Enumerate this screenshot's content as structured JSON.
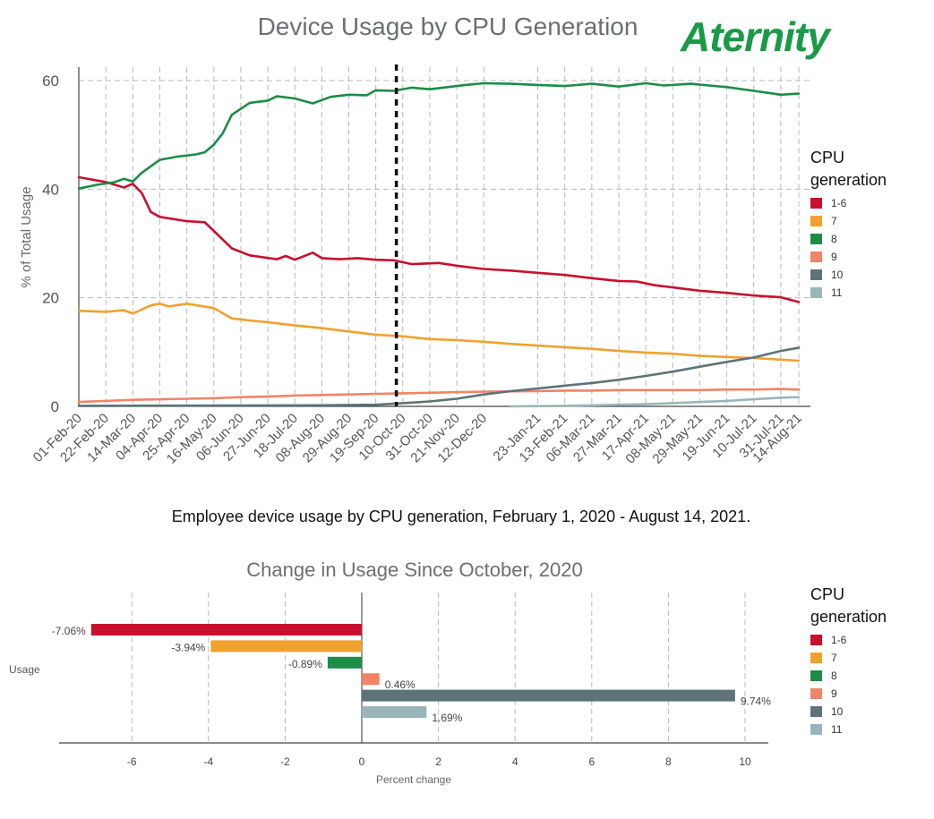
{
  "brand": {
    "logo_text": "Aternity",
    "logo_color": "#1a9a47"
  },
  "caption": "Employee device usage by CPU generation, February 1, 2020 - August 14, 2021.",
  "legend": {
    "title_line1": "CPU",
    "title_line2": "generation",
    "items": [
      {
        "label": "1-6",
        "color": "#c8102e"
      },
      {
        "label": "7",
        "color": "#f0a22e"
      },
      {
        "label": "8",
        "color": "#1c8c47"
      },
      {
        "label": "9",
        "color": "#f08468"
      },
      {
        "label": "10",
        "color": "#5d7378"
      },
      {
        "label": "11",
        "color": "#9ab5ba"
      }
    ]
  },
  "chart_data": [
    {
      "type": "line",
      "title": "Device Usage by CPU Generation",
      "ylabel": "% of Total Usage",
      "xlabel": "",
      "ylim": [
        0,
        62
      ],
      "yticks": [
        0,
        20,
        40,
        60
      ],
      "grid": true,
      "legend_placement": "right",
      "x_ticks": [
        "01-Feb-20",
        "22-Feb-20",
        "14-Mar-20",
        "04-Apr-20",
        "25-Apr-20",
        "16-May-20",
        "06-Jun-20",
        "27-Jun-20",
        "18-Jul-20",
        "08-Aug-20",
        "29-Aug-20",
        "19-Sep-20",
        "10-Oct-20",
        "31-Oct-20",
        "21-Nov-20",
        "12-Dec-20",
        "23-Jan-21",
        "13-Feb-21",
        "06-Mar-21",
        "27-Mar-21",
        "17-Apr-21",
        "08-May-21",
        "29-May-21",
        "19-Jun-21",
        "10-Jul-21",
        "31-Jul-21",
        "14-Aug-21"
      ],
      "reference_line": {
        "x": "05-Oct-20",
        "style": "dotted"
      },
      "series": [
        {
          "name": "1-6",
          "color": "#c8102e",
          "points": [
            [
              "01-Feb-20",
              42.2
            ],
            [
              "22-Feb-20",
              41.3
            ],
            [
              "07-Mar-20",
              40.3
            ],
            [
              "14-Mar-20",
              41.0
            ],
            [
              "21-Mar-20",
              39.3
            ],
            [
              "28-Mar-20",
              35.8
            ],
            [
              "04-Apr-20",
              34.9
            ],
            [
              "25-Apr-20",
              34.1
            ],
            [
              "09-May-20",
              33.9
            ],
            [
              "16-May-20",
              32.3
            ],
            [
              "30-May-20",
              29.1
            ],
            [
              "13-Jun-20",
              27.8
            ],
            [
              "04-Jul-20",
              27.1
            ],
            [
              "11-Jul-20",
              27.7
            ],
            [
              "18-Jul-20",
              27.0
            ],
            [
              "01-Aug-20",
              28.3
            ],
            [
              "08-Aug-20",
              27.3
            ],
            [
              "22-Aug-20",
              27.1
            ],
            [
              "05-Sep-20",
              27.3
            ],
            [
              "19-Sep-20",
              27.0
            ],
            [
              "03-Oct-20",
              26.9
            ],
            [
              "17-Oct-20",
              26.2
            ],
            [
              "07-Nov-20",
              26.4
            ],
            [
              "21-Nov-20",
              25.9
            ],
            [
              "12-Dec-20",
              25.3
            ],
            [
              "02-Jan-21",
              25.0
            ],
            [
              "23-Jan-21",
              24.6
            ],
            [
              "13-Feb-21",
              24.2
            ],
            [
              "06-Mar-21",
              23.6
            ],
            [
              "27-Mar-21",
              23.1
            ],
            [
              "10-Apr-21",
              23.0
            ],
            [
              "24-Apr-21",
              22.3
            ],
            [
              "08-May-21",
              21.9
            ],
            [
              "29-May-21",
              21.3
            ],
            [
              "19-Jun-21",
              20.9
            ],
            [
              "10-Jul-21",
              20.4
            ],
            [
              "31-Jul-21",
              20.1
            ],
            [
              "14-Aug-21",
              19.2
            ]
          ]
        },
        {
          "name": "7",
          "color": "#f0a22e",
          "points": [
            [
              "01-Feb-20",
              17.6
            ],
            [
              "22-Feb-20",
              17.4
            ],
            [
              "07-Mar-20",
              17.7
            ],
            [
              "14-Mar-20",
              17.1
            ],
            [
              "28-Mar-20",
              18.6
            ],
            [
              "04-Apr-20",
              18.9
            ],
            [
              "11-Apr-20",
              18.4
            ],
            [
              "25-Apr-20",
              18.9
            ],
            [
              "16-May-20",
              18.1
            ],
            [
              "30-May-20",
              16.2
            ],
            [
              "13-Jun-20",
              15.8
            ],
            [
              "27-Jun-20",
              15.5
            ],
            [
              "18-Jul-20",
              14.9
            ],
            [
              "08-Aug-20",
              14.4
            ],
            [
              "29-Aug-20",
              13.8
            ],
            [
              "19-Sep-20",
              13.2
            ],
            [
              "10-Oct-20",
              12.9
            ],
            [
              "31-Oct-20",
              12.4
            ],
            [
              "21-Nov-20",
              12.2
            ],
            [
              "12-Dec-20",
              11.9
            ],
            [
              "02-Jan-21",
              11.5
            ],
            [
              "23-Jan-21",
              11.2
            ],
            [
              "13-Feb-21",
              10.9
            ],
            [
              "06-Mar-21",
              10.6
            ],
            [
              "27-Mar-21",
              10.2
            ],
            [
              "17-Apr-21",
              9.9
            ],
            [
              "08-May-21",
              9.7
            ],
            [
              "29-May-21",
              9.3
            ],
            [
              "19-Jun-21",
              9.1
            ],
            [
              "10-Jul-21",
              8.9
            ],
            [
              "31-Jul-21",
              8.6
            ],
            [
              "14-Aug-21",
              8.4
            ]
          ]
        },
        {
          "name": "8",
          "color": "#1c8c47",
          "points": [
            [
              "01-Feb-20",
              40.1
            ],
            [
              "15-Feb-20",
              40.8
            ],
            [
              "29-Feb-20",
              41.3
            ],
            [
              "07-Mar-20",
              41.9
            ],
            [
              "14-Mar-20",
              41.4
            ],
            [
              "21-Mar-20",
              43.0
            ],
            [
              "04-Apr-20",
              45.4
            ],
            [
              "18-Apr-20",
              46.0
            ],
            [
              "02-May-20",
              46.4
            ],
            [
              "09-May-20",
              46.8
            ],
            [
              "16-May-20",
              48.2
            ],
            [
              "23-May-20",
              50.3
            ],
            [
              "30-May-20",
              53.7
            ],
            [
              "13-Jun-20",
              55.9
            ],
            [
              "27-Jun-20",
              56.3
            ],
            [
              "04-Jul-20",
              57.1
            ],
            [
              "18-Jul-20",
              56.7
            ],
            [
              "01-Aug-20",
              55.8
            ],
            [
              "15-Aug-20",
              57.0
            ],
            [
              "29-Aug-20",
              57.4
            ],
            [
              "12-Sep-20",
              57.3
            ],
            [
              "19-Sep-20",
              58.2
            ],
            [
              "03-Oct-20",
              58.1
            ],
            [
              "17-Oct-20",
              58.7
            ],
            [
              "31-Oct-20",
              58.4
            ],
            [
              "14-Nov-20",
              58.8
            ],
            [
              "28-Nov-20",
              59.2
            ],
            [
              "12-Dec-20",
              59.5
            ],
            [
              "02-Jan-21",
              59.4
            ],
            [
              "23-Jan-21",
              59.2
            ],
            [
              "13-Feb-21",
              59.0
            ],
            [
              "06-Mar-21",
              59.4
            ],
            [
              "27-Mar-21",
              58.9
            ],
            [
              "17-Apr-21",
              59.5
            ],
            [
              "01-May-21",
              59.1
            ],
            [
              "22-May-21",
              59.4
            ],
            [
              "05-Jun-21",
              59.1
            ],
            [
              "19-Jun-21",
              58.8
            ],
            [
              "10-Jul-21",
              58.1
            ],
            [
              "31-Jul-21",
              57.4
            ],
            [
              "14-Aug-21",
              57.6
            ]
          ]
        },
        {
          "name": "9",
          "color": "#f08468",
          "points": [
            [
              "01-Feb-20",
              0.8
            ],
            [
              "14-Mar-20",
              1.2
            ],
            [
              "25-Apr-20",
              1.4
            ],
            [
              "16-May-20",
              1.5
            ],
            [
              "06-Jun-20",
              1.7
            ],
            [
              "27-Jun-20",
              1.8
            ],
            [
              "18-Jul-20",
              2.0
            ],
            [
              "08-Aug-20",
              2.1
            ],
            [
              "29-Aug-20",
              2.2
            ],
            [
              "19-Sep-20",
              2.3
            ],
            [
              "10-Oct-20",
              2.4
            ],
            [
              "31-Oct-20",
              2.5
            ],
            [
              "21-Nov-20",
              2.6
            ],
            [
              "12-Dec-20",
              2.7
            ],
            [
              "23-Jan-21",
              2.8
            ],
            [
              "13-Feb-21",
              2.9
            ],
            [
              "06-Mar-21",
              2.9
            ],
            [
              "27-Mar-21",
              3.0
            ],
            [
              "17-Apr-21",
              3.0
            ],
            [
              "08-May-21",
              3.0
            ],
            [
              "29-May-21",
              3.0
            ],
            [
              "19-Jun-21",
              3.1
            ],
            [
              "10-Jul-21",
              3.1
            ],
            [
              "31-Jul-21",
              3.2
            ],
            [
              "14-Aug-21",
              3.1
            ]
          ]
        },
        {
          "name": "10",
          "color": "#5d7378",
          "points": [
            [
              "01-Feb-20",
              0.1
            ],
            [
              "08-Aug-20",
              0.2
            ],
            [
              "19-Sep-20",
              0.3
            ],
            [
              "10-Oct-20",
              0.6
            ],
            [
              "31-Oct-20",
              0.9
            ],
            [
              "21-Nov-20",
              1.4
            ],
            [
              "12-Dec-20",
              2.2
            ],
            [
              "02-Jan-21",
              2.8
            ],
            [
              "23-Jan-21",
              3.3
            ],
            [
              "13-Feb-21",
              3.8
            ],
            [
              "06-Mar-21",
              4.3
            ],
            [
              "27-Mar-21",
              4.9
            ],
            [
              "17-Apr-21",
              5.6
            ],
            [
              "08-May-21",
              6.4
            ],
            [
              "29-May-21",
              7.3
            ],
            [
              "19-Jun-21",
              8.2
            ],
            [
              "10-Jul-21",
              9.0
            ],
            [
              "24-Jul-21",
              9.8
            ],
            [
              "31-Jul-21",
              10.2
            ],
            [
              "14-Aug-21",
              10.8
            ]
          ]
        },
        {
          "name": "11",
          "color": "#9ab5ba",
          "points": [
            [
              "02-Jan-21",
              0.0
            ],
            [
              "13-Feb-21",
              0.1
            ],
            [
              "06-Mar-21",
              0.2
            ],
            [
              "27-Mar-21",
              0.3
            ],
            [
              "17-Apr-21",
              0.4
            ],
            [
              "08-May-21",
              0.6
            ],
            [
              "29-May-21",
              0.8
            ],
            [
              "19-Jun-21",
              1.0
            ],
            [
              "10-Jul-21",
              1.3
            ],
            [
              "31-Jul-21",
              1.6
            ],
            [
              "14-Aug-21",
              1.7
            ]
          ]
        }
      ]
    },
    {
      "type": "bar",
      "orientation": "horizontal",
      "title": "Change in Usage Since October, 2020",
      "xlabel": "Percent change",
      "ylabel": "Usage",
      "xlim": [
        -7.8,
        10.6
      ],
      "xticks": [
        -6,
        -4,
        -2,
        0,
        2,
        4,
        6,
        8,
        10
      ],
      "tick_labels": [
        "-6",
        "-4",
        "-2",
        "0",
        "2",
        "4",
        "6",
        "8",
        "10"
      ],
      "grid": true,
      "legend_placement": "right",
      "categories": [
        "1-6",
        "7",
        "8",
        "9",
        "10",
        "11"
      ],
      "values": [
        -7.06,
        -3.94,
        -0.89,
        0.46,
        9.74,
        1.69
      ],
      "value_labels": [
        "-7.06%",
        "-3.94%",
        "-0.89%",
        "0.46%",
        "9.74%",
        "1.69%"
      ],
      "colors": [
        "#c8102e",
        "#f0a22e",
        "#1c8c47",
        "#f08468",
        "#5d7378",
        "#9ab5ba"
      ]
    }
  ]
}
